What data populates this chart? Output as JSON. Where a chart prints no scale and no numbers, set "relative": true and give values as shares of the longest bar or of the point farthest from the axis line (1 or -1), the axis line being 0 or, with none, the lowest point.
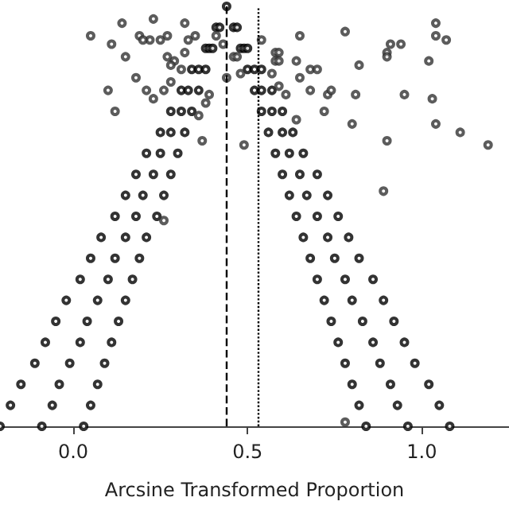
{
  "chart_data": {
    "type": "scatter",
    "xlabel": "Arcsine Transformed Proportion",
    "relative": true,
    "marker": "circle",
    "xlim": [
      -0.21,
      1.25
    ],
    "xticks": [
      {
        "value": 0,
        "label": "0.0"
      },
      {
        "value": 0.5,
        "label": "0.5"
      },
      {
        "value": 1,
        "label": "1.0"
      }
    ],
    "ref_lines": [
      {
        "axis": "x",
        "value": 0.44,
        "line_style": "dashed",
        "color": "#000000"
      },
      {
        "axis": "x",
        "value": 0.53,
        "line_style": "dotted",
        "color": "#000000"
      }
    ],
    "series": [
      {
        "color": "#000000",
        "x": [
          -0.21,
          -0.09,
          0.03,
          0.84,
          0.96,
          1.08,
          -0.18,
          -0.06,
          0.05,
          0.82,
          0.93,
          1.05,
          -0.15,
          -0.04,
          0.07,
          0.8,
          0.91,
          1.02,
          -0.11,
          -0.01,
          0.09,
          0.78,
          0.88,
          0.98,
          -0.08,
          0.02,
          0.11,
          0.76,
          0.86,
          0.95,
          -0.05,
          0.04,
          0.13,
          0.74,
          0.83,
          0.92,
          -0.02,
          0.07,
          0.15,
          0.72,
          0.8,
          0.89,
          0.02,
          0.1,
          0.17,
          0.7,
          0.78,
          0.86,
          0.05,
          0.12,
          0.19,
          0.68,
          0.75,
          0.82,
          0.08,
          0.15,
          0.21,
          0.66,
          0.73,
          0.79,
          0.12,
          0.18,
          0.24,
          0.64,
          0.7,
          0.76,
          0.15,
          0.2,
          0.26,
          0.62,
          0.67,
          0.73,
          0.18,
          0.23,
          0.28,
          0.6,
          0.65,
          0.7,
          0.21,
          0.25,
          0.3,
          0.58,
          0.62,
          0.66,
          0.25,
          0.28,
          0.32,
          0.56,
          0.6,
          0.63,
          0.28,
          0.31,
          0.34,
          0.54,
          0.57,
          0.6,
          0.31,
          0.33,
          0.36,
          0.52,
          0.54,
          0.57,
          0.34,
          0.36,
          0.38,
          0.5,
          0.52,
          0.54,
          0.38,
          0.39,
          0.4,
          0.48,
          0.49,
          0.5,
          0.41,
          0.42,
          0.46,
          0.47,
          0.44
        ],
        "values": [
          0,
          0,
          0,
          0,
          0,
          0,
          0.05,
          0.05,
          0.05,
          0.05,
          0.05,
          0.05,
          0.1,
          0.1,
          0.1,
          0.1,
          0.1,
          0.1,
          0.15,
          0.15,
          0.15,
          0.15,
          0.15,
          0.15,
          0.2,
          0.2,
          0.2,
          0.2,
          0.2,
          0.2,
          0.25,
          0.25,
          0.25,
          0.25,
          0.25,
          0.25,
          0.3,
          0.3,
          0.3,
          0.3,
          0.3,
          0.3,
          0.35,
          0.35,
          0.35,
          0.35,
          0.35,
          0.35,
          0.4,
          0.4,
          0.4,
          0.4,
          0.4,
          0.4,
          0.45,
          0.45,
          0.45,
          0.45,
          0.45,
          0.45,
          0.5,
          0.5,
          0.5,
          0.5,
          0.5,
          0.5,
          0.55,
          0.55,
          0.55,
          0.55,
          0.55,
          0.55,
          0.6,
          0.6,
          0.6,
          0.6,
          0.6,
          0.6,
          0.65,
          0.65,
          0.65,
          0.65,
          0.65,
          0.65,
          0.7,
          0.7,
          0.7,
          0.7,
          0.7,
          0.7,
          0.75,
          0.75,
          0.75,
          0.75,
          0.75,
          0.75,
          0.8,
          0.8,
          0.8,
          0.8,
          0.8,
          0.8,
          0.85,
          0.85,
          0.85,
          0.85,
          0.85,
          0.85,
          0.9,
          0.9,
          0.9,
          0.9,
          0.9,
          0.9,
          0.95,
          0.95,
          0.95,
          0.95,
          1
        ]
      },
      {
        "color": "#333333",
        "x": [
          0.05,
          0.14,
          0.23,
          0.32,
          0.11,
          0.19,
          0.22,
          0.25,
          0.27,
          0.2,
          0.33,
          0.35,
          0.15,
          0.27,
          0.29,
          0.31,
          0.32,
          0.28,
          0.18,
          0.21,
          0.23,
          0.26,
          0.28,
          0.1,
          0.12,
          0.36,
          0.37,
          0.38,
          0.39,
          0.46,
          0.47,
          0.48,
          0.44,
          0.49,
          0.43,
          0.41,
          0.54,
          0.58,
          0.59,
          0.58,
          0.59,
          0.65,
          0.64,
          0.57,
          0.65,
          0.68,
          0.7,
          0.59,
          0.68,
          0.61,
          0.73,
          0.74,
          0.72,
          0.78,
          0.82,
          0.81,
          0.8,
          0.9,
          0.91,
          0.94,
          0.9,
          0.95,
          1.04,
          1.04,
          1.07,
          1.02,
          1.03,
          1.04,
          1.11,
          1.19,
          0.9,
          0.89,
          0.64,
          0.26,
          0.78
        ],
        "values": [
          0.93,
          0.96,
          0.97,
          0.96,
          0.91,
          0.93,
          0.92,
          0.92,
          0.93,
          0.92,
          0.92,
          0.93,
          0.88,
          0.88,
          0.87,
          0.85,
          0.89,
          0.86,
          0.83,
          0.8,
          0.78,
          0.8,
          0.82,
          0.8,
          0.75,
          0.74,
          0.68,
          0.77,
          0.79,
          0.88,
          0.88,
          0.84,
          0.83,
          0.67,
          0.91,
          0.93,
          0.92,
          0.89,
          0.89,
          0.87,
          0.87,
          0.93,
          0.87,
          0.84,
          0.83,
          0.85,
          0.85,
          0.81,
          0.8,
          0.79,
          0.79,
          0.8,
          0.75,
          0.94,
          0.86,
          0.79,
          0.72,
          0.89,
          0.91,
          0.91,
          0.88,
          0.79,
          0.96,
          0.93,
          0.92,
          0.87,
          0.78,
          0.72,
          0.7,
          0.67,
          0.68,
          0.56,
          0.73,
          0.49,
          0.01
        ]
      }
    ]
  }
}
